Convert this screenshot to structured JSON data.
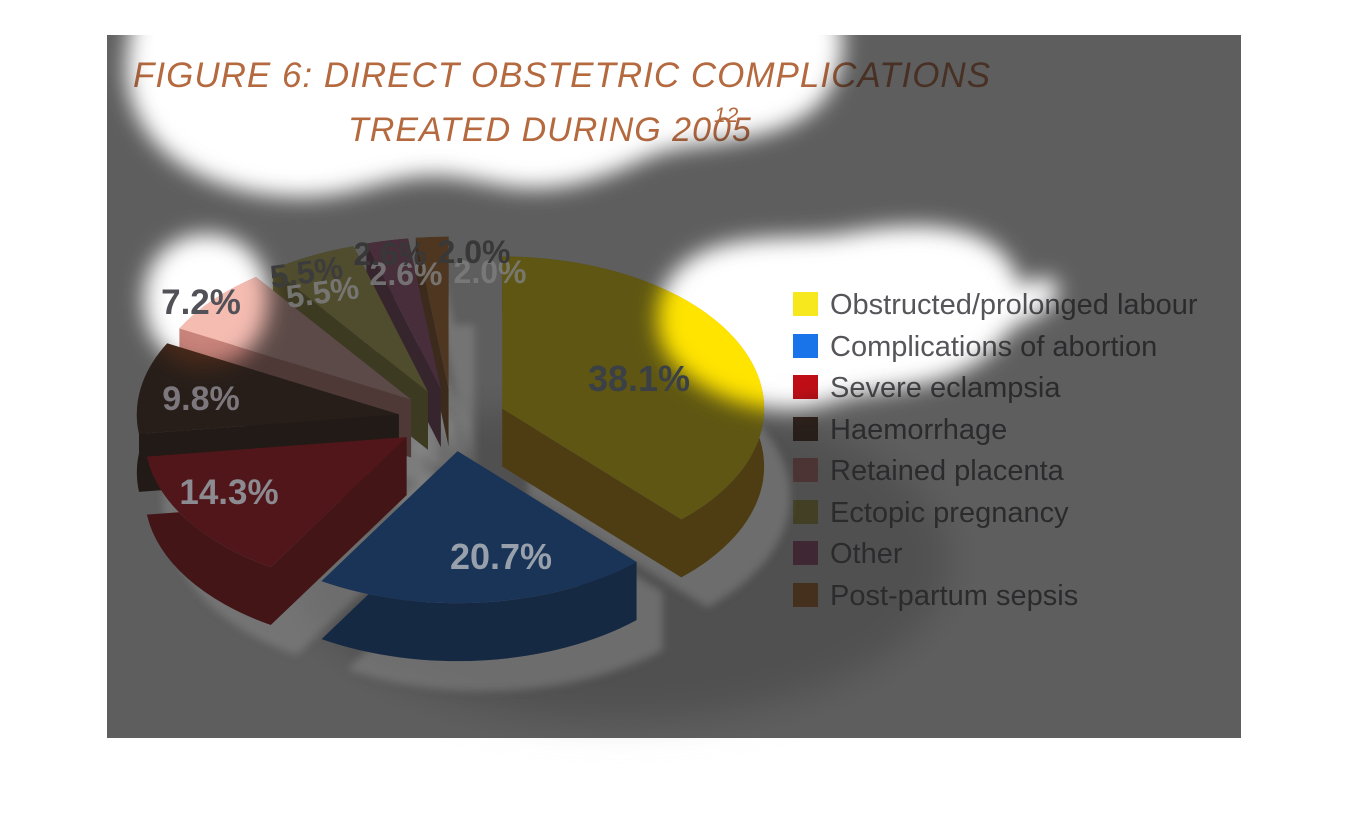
{
  "figure": {
    "title_line1": "FIGURE 6: DIRECT OBSTETRIC COMPLICATIONS",
    "title_line2": "TREATED DURING 2005",
    "title_superscript": "12",
    "title_color": "#b5693f"
  },
  "chart_data": {
    "type": "pie",
    "title": "Figure 6: Direct obstetric complications treated during 2005",
    "unit": "%",
    "style": "3d-exploded-pie",
    "legend_position": "right",
    "categories": [
      "Obstructed/prolonged labour",
      "Complications of abortion",
      "Severe eclampsia",
      "Haemorrhage",
      "Retained placenta",
      "Ectopic pregnancy",
      "Other",
      "Post-partum sepsis"
    ],
    "values": [
      38.1,
      20.7,
      14.3,
      9.8,
      7.2,
      5.5,
      2.6,
      2.0
    ],
    "colors": [
      "#ffe400",
      "#1a74e8",
      "#d41018",
      "#4a2a1a",
      "#f5bcb2",
      "#cfc35e",
      "#b35f88",
      "#c97a35"
    ],
    "wall_colors": [
      "#c89200",
      "#0d4da6",
      "#a50a0e",
      "#331c10",
      "#c8837a",
      "#8f8638",
      "#7c4260",
      "#8c5527"
    ],
    "label_text_colors": [
      "#3a4046",
      "#98a0ab",
      "#8b8b91",
      "#7b777d",
      "#515157",
      "#3c3c3c",
      "#383838",
      "#383838"
    ]
  },
  "legend": {
    "items": [
      {
        "label": "Obstructed/prolonged labour",
        "color": "#f6e81c"
      },
      {
        "label": "Complications of abortion",
        "color": "#1874e8"
      },
      {
        "label": "Severe eclampsia",
        "color": "#c00e16"
      },
      {
        "label": "Haemorrhage",
        "color": "#4a2a1a"
      },
      {
        "label": "Retained placenta",
        "color": "#c47074"
      },
      {
        "label": "Ectopic pregnancy",
        "color": "#a29740"
      },
      {
        "label": "Other",
        "color": "#984972"
      },
      {
        "label": "Post-partum sepsis",
        "color": "#a86426"
      }
    ]
  },
  "overlay": {
    "dim_fill": "#191919",
    "dim_opacity": 0.7,
    "highlight_fill": "#ffffff",
    "page_background": "#ffffff"
  }
}
